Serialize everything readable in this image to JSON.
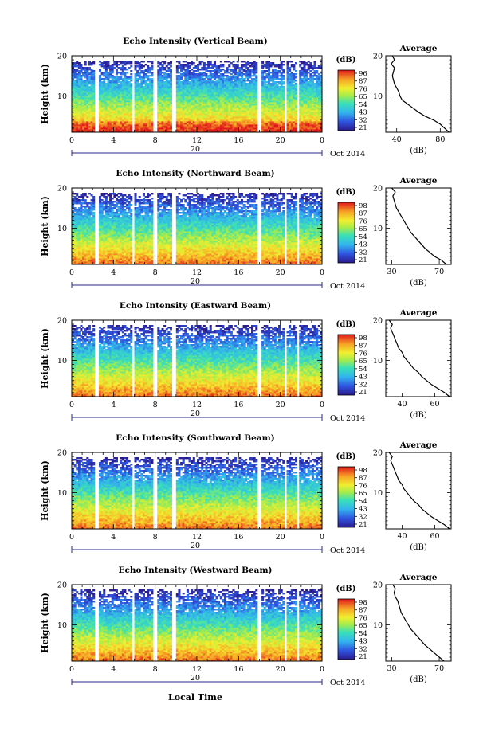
{
  "figure": {
    "xlabel": "Local Time",
    "date_label": "Oct 2014",
    "date_tick": "20",
    "ylabel": "Height (km)",
    "unit": "(dB)",
    "average_title": "Average"
  },
  "chart_data": [
    {
      "type": "heatmap",
      "title": "Echo Intensity (Vertical Beam)",
      "x_ticks": [
        "0",
        "4",
        "8",
        "12",
        "16",
        "20",
        "0"
      ],
      "xlim": [
        0,
        24
      ],
      "y_ticks": [
        "20",
        "10"
      ],
      "ylim": [
        1,
        20
      ],
      "colorbar_ticks": [
        "96",
        "87",
        "76",
        "65",
        "54",
        "43",
        "32",
        "21"
      ],
      "avg_x_ticks": [
        "40",
        "80"
      ],
      "avg_xlim": [
        30,
        90
      ],
      "avg_profile": {
        "height": [
          1,
          2,
          3,
          4,
          5,
          6,
          7,
          8,
          9,
          10,
          11,
          12,
          13,
          14,
          15,
          16,
          17,
          18,
          19,
          20
        ],
        "value": [
          88,
          84,
          80,
          74,
          66,
          60,
          55,
          50,
          45,
          43,
          42,
          40,
          38,
          37,
          36,
          37,
          38,
          35,
          38,
          36
        ]
      }
    },
    {
      "type": "heatmap",
      "title": "Echo Intensity (Northward Beam)",
      "x_ticks": [
        "0",
        "4",
        "8",
        "12",
        "16",
        "20",
        "0"
      ],
      "xlim": [
        0,
        24
      ],
      "y_ticks": [
        "20",
        "10"
      ],
      "ylim": [
        1,
        20
      ],
      "colorbar_ticks": [
        "98",
        "87",
        "76",
        "65",
        "54",
        "43",
        "32",
        "21"
      ],
      "avg_x_ticks": [
        "30",
        "70"
      ],
      "avg_xlim": [
        25,
        80
      ],
      "avg_profile": {
        "height": [
          1,
          2,
          3,
          4,
          5,
          6,
          7,
          8,
          9,
          10,
          11,
          12,
          13,
          14,
          15,
          16,
          17,
          18,
          19,
          20
        ],
        "value": [
          76,
          72,
          66,
          62,
          58,
          55,
          52,
          49,
          46,
          44,
          42,
          40,
          38,
          36,
          34,
          33,
          32,
          31,
          33,
          30
        ]
      }
    },
    {
      "type": "heatmap",
      "title": "Echo Intensity (Eastward Beam)",
      "x_ticks": [
        "0",
        "4",
        "8",
        "12",
        "16",
        "20",
        "0"
      ],
      "xlim": [
        0,
        24
      ],
      "y_ticks": [
        "20",
        "10"
      ],
      "ylim": [
        1,
        20
      ],
      "colorbar_ticks": [
        "98",
        "87",
        "76",
        "65",
        "54",
        "43",
        "32",
        "21"
      ],
      "avg_x_ticks": [
        "40",
        "60"
      ],
      "avg_xlim": [
        30,
        70
      ],
      "avg_profile": {
        "height": [
          1,
          2,
          3,
          4,
          5,
          6,
          7,
          8,
          9,
          10,
          11,
          12,
          13,
          14,
          15,
          16,
          17,
          18,
          19,
          20
        ],
        "value": [
          69,
          66,
          62,
          58,
          55,
          52,
          50,
          47,
          45,
          43,
          41,
          40,
          38,
          37,
          36,
          35,
          34,
          33,
          34,
          32
        ]
      }
    },
    {
      "type": "heatmap",
      "title": "Echo Intensity (Southward Beam)",
      "x_ticks": [
        "0",
        "4",
        "8",
        "12",
        "16",
        "20",
        "0"
      ],
      "xlim": [
        0,
        24
      ],
      "y_ticks": [
        "20",
        "10"
      ],
      "ylim": [
        1,
        20
      ],
      "colorbar_ticks": [
        "98",
        "87",
        "76",
        "65",
        "54",
        "43",
        "32",
        "21"
      ],
      "avg_x_ticks": [
        "40",
        "60"
      ],
      "avg_xlim": [
        30,
        70
      ],
      "avg_profile": {
        "height": [
          1,
          2,
          3,
          4,
          5,
          6,
          7,
          8,
          9,
          10,
          11,
          12,
          13,
          14,
          15,
          16,
          17,
          18,
          19,
          20
        ],
        "value": [
          69,
          66,
          62,
          58,
          55,
          52,
          50,
          47,
          45,
          43,
          41,
          40,
          38,
          37,
          36,
          35,
          34,
          33,
          34,
          32
        ]
      }
    },
    {
      "type": "heatmap",
      "title": "Echo Intensity (Westward Beam)",
      "x_ticks": [
        "0",
        "4",
        "8",
        "12",
        "16",
        "20",
        "0"
      ],
      "xlim": [
        0,
        24
      ],
      "y_ticks": [
        "20",
        "10"
      ],
      "ylim": [
        1,
        20
      ],
      "colorbar_ticks": [
        "98",
        "87",
        "76",
        "65",
        "54",
        "43",
        "32",
        "21"
      ],
      "avg_x_ticks": [
        "30",
        "70"
      ],
      "avg_xlim": [
        25,
        80
      ],
      "avg_profile": {
        "height": [
          1,
          2,
          3,
          4,
          5,
          6,
          7,
          8,
          9,
          10,
          11,
          12,
          13,
          14,
          15,
          16,
          17,
          18,
          19,
          20
        ],
        "value": [
          74,
          70,
          66,
          62,
          58,
          55,
          52,
          49,
          46,
          44,
          42,
          40,
          38,
          37,
          36,
          35,
          33,
          32,
          33,
          31
        ]
      }
    }
  ]
}
